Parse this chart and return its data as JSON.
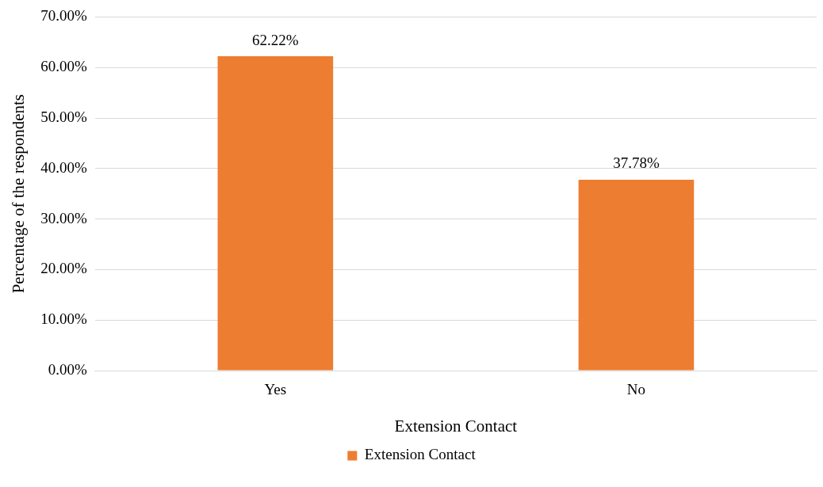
{
  "chart_data": {
    "type": "bar",
    "xlabel": "Extension Contact",
    "ylabel": "Percentage of the respondents",
    "categories": [
      "Yes",
      "No"
    ],
    "series": [
      {
        "name": "Extension Contact",
        "color": "#ed7d31",
        "values": [
          62.22,
          37.78
        ],
        "value_labels": [
          "62.22%",
          "37.78%"
        ]
      }
    ],
    "ylim": [
      0,
      70
    ],
    "yticks": [
      {
        "value": 0,
        "label": "0.00%"
      },
      {
        "value": 10,
        "label": "10.00%"
      },
      {
        "value": 20,
        "label": "20.00%"
      },
      {
        "value": 30,
        "label": "30.00%"
      },
      {
        "value": 40,
        "label": "40.00%"
      },
      {
        "value": 50,
        "label": "50.00%"
      },
      {
        "value": 60,
        "label": "60.00%"
      },
      {
        "value": 70,
        "label": "70.00%"
      }
    ],
    "grid": "y",
    "legend": "bottom"
  }
}
